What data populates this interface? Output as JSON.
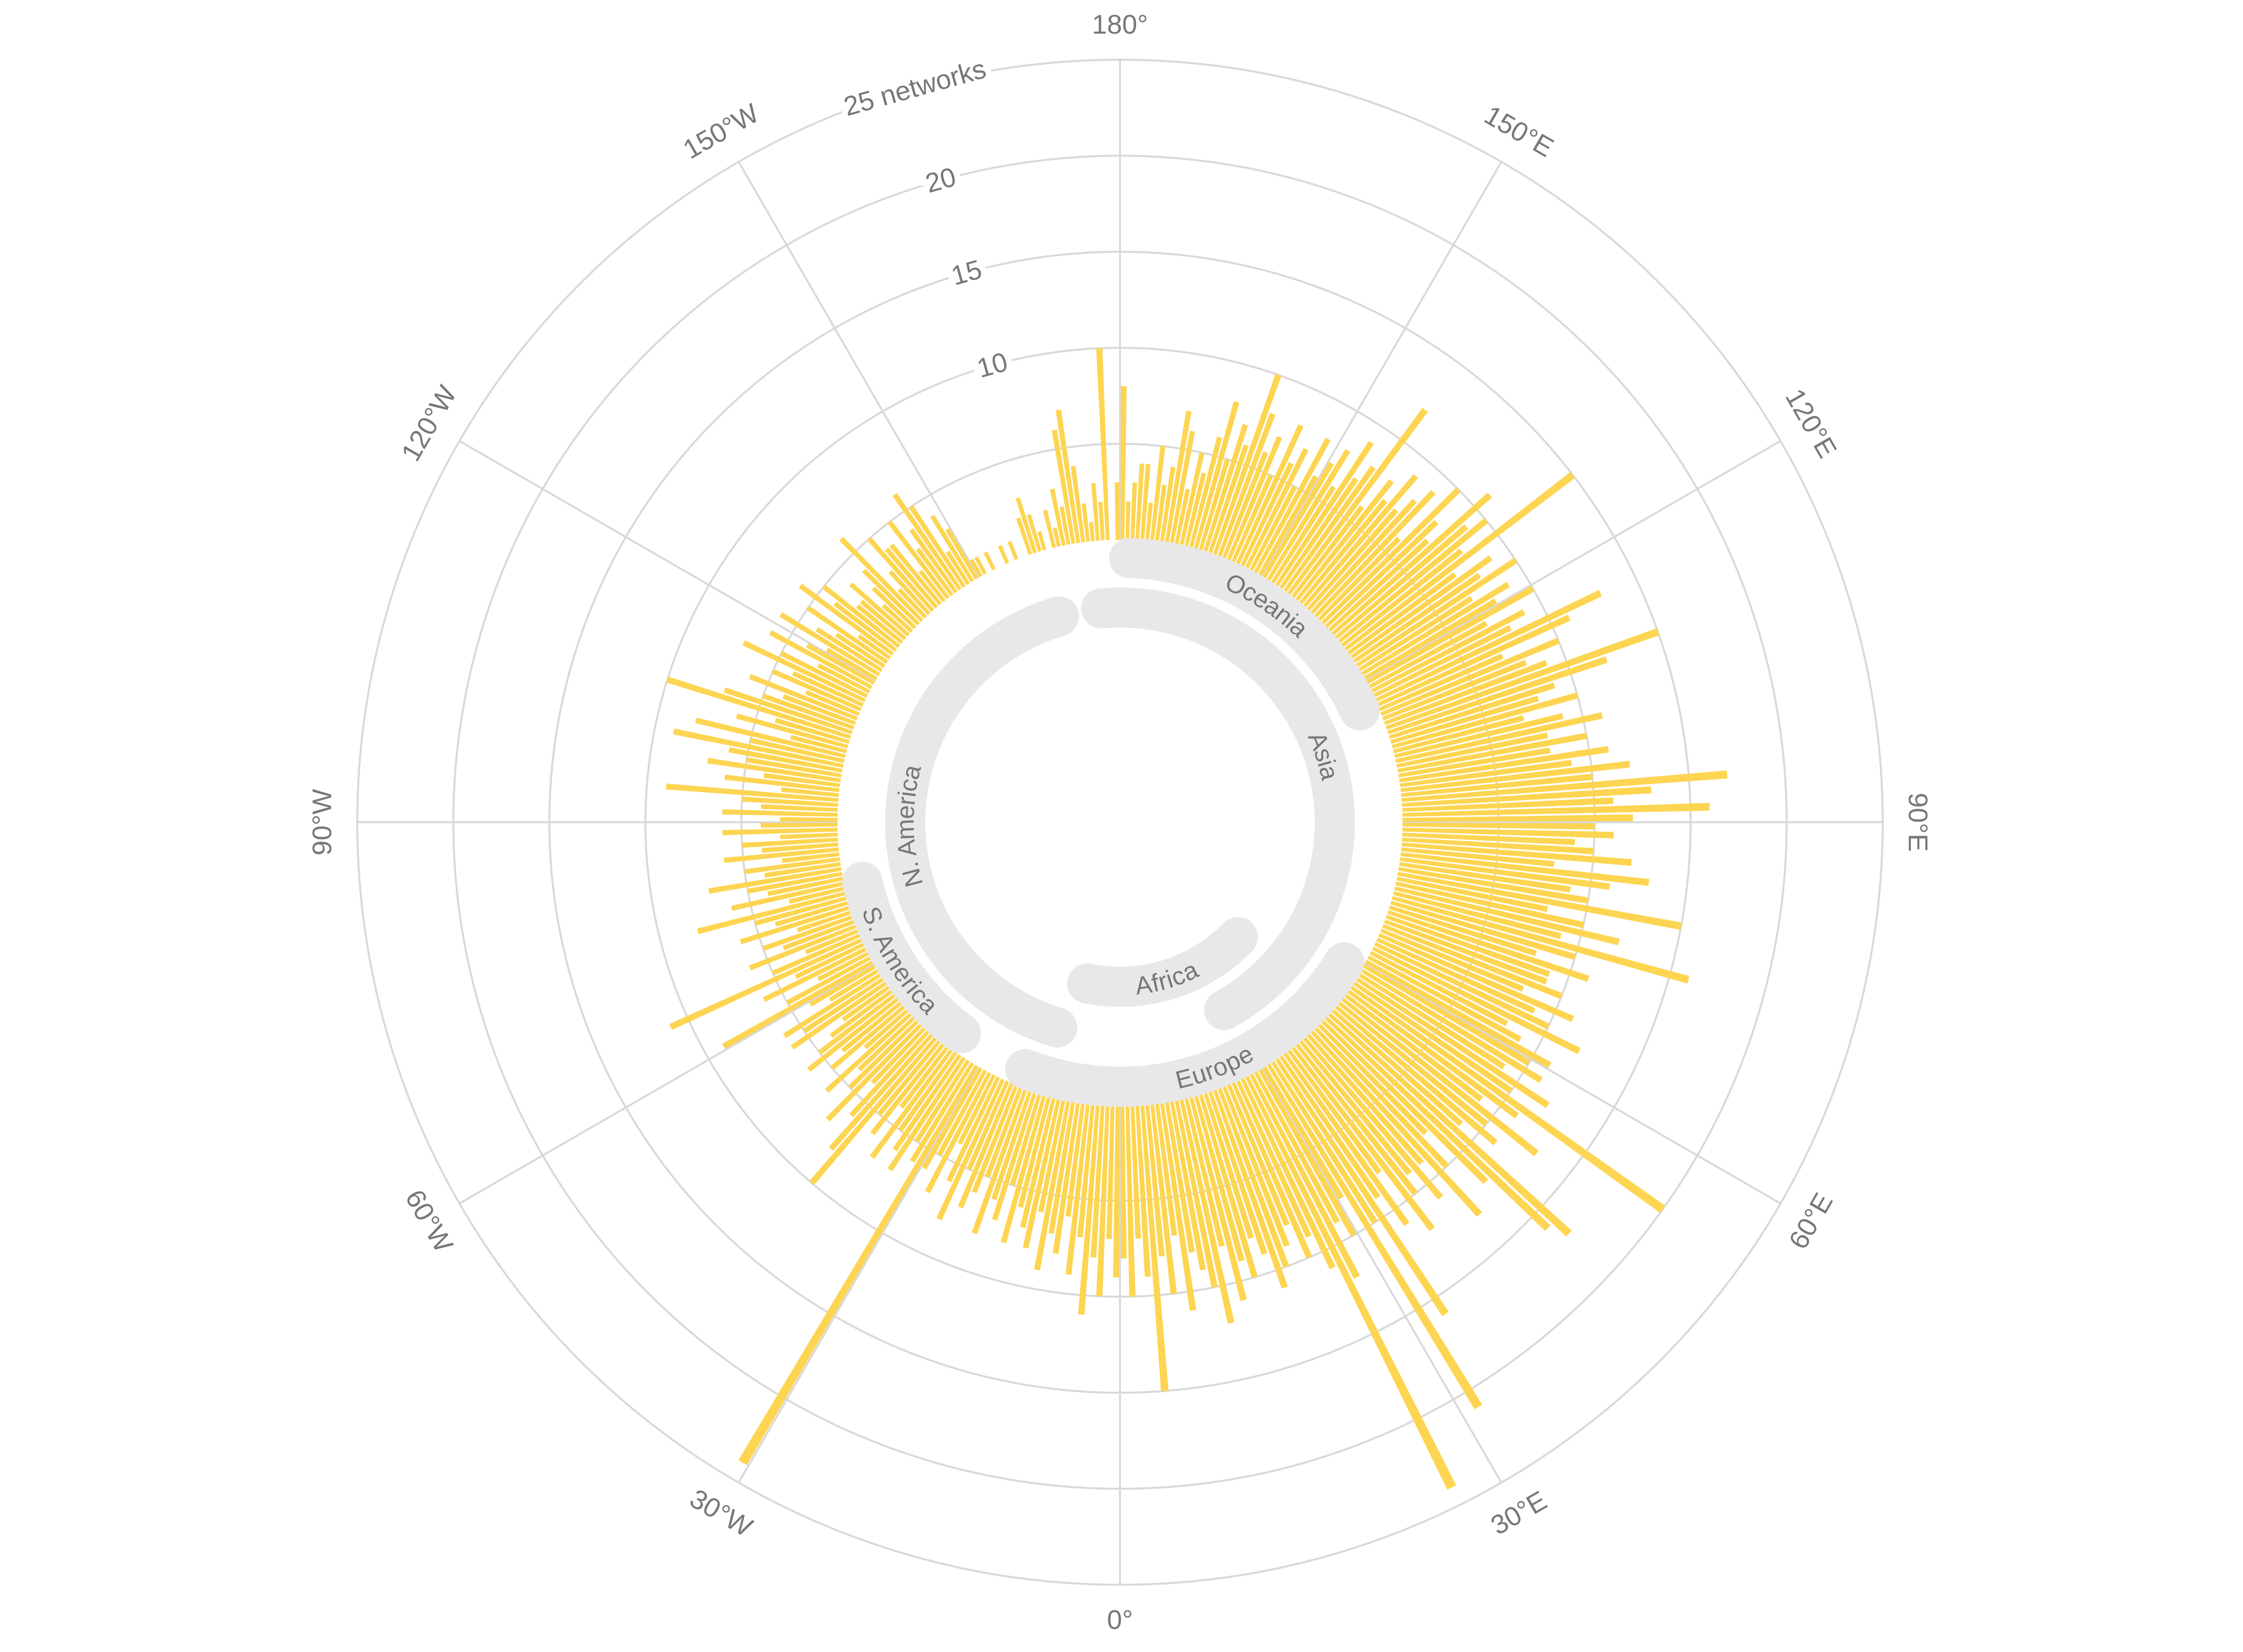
{
  "chart_data": {
    "type": "polar-histogram",
    "bins": [
      -180,
      -179,
      -178,
      -177,
      -176,
      -175,
      -174,
      -173,
      -172,
      -171,
      -170,
      -169,
      -168,
      -167,
      -166,
      -165,
      -164,
      -163,
      -162,
      -161,
      -160,
      -159,
      -158,
      -157,
      -156,
      -155,
      -154,
      -153,
      -152,
      -151,
      -150,
      -149,
      -148,
      -147,
      -146,
      -145,
      -144,
      -143,
      -142,
      -141,
      -140,
      -139,
      -138,
      -137,
      -136,
      -135,
      -134,
      -133,
      -132,
      -131,
      -130,
      -129,
      -128,
      -127,
      -126,
      -125,
      -124,
      -123,
      -122,
      -121,
      -120,
      -119,
      -118,
      -117,
      -116,
      -115,
      -114,
      -113,
      -112,
      -111,
      -110,
      -109,
      -108,
      -107,
      -106,
      -105,
      -104,
      -103,
      -102,
      -101,
      -100,
      -99,
      -98,
      -97,
      -96,
      -95,
      -94,
      -93,
      -92,
      -91,
      -90,
      -89,
      -88,
      -87,
      -86,
      -85,
      -84,
      -83,
      -82,
      -81,
      -80,
      -79,
      -78,
      -77,
      -76,
      -75,
      -74,
      -73,
      -72,
      -71,
      -70,
      -69,
      -68,
      -67,
      -66,
      -65,
      -64,
      -63,
      -62,
      -61,
      -60,
      -59,
      -58,
      -57,
      -56,
      -55,
      -54,
      -53,
      -52,
      -51,
      -50,
      -49,
      -48,
      -47,
      -46,
      -45,
      -44,
      -43,
      -42,
      -41,
      -40,
      -39,
      -38,
      -37,
      -36,
      -35,
      -34,
      -33,
      -32,
      -31,
      -30,
      -29,
      -28,
      -27,
      -26,
      -25,
      -24,
      -23,
      -22,
      -21,
      -20,
      -19,
      -18,
      -17,
      -16,
      -15,
      -14,
      -13,
      -12,
      -11,
      -10,
      -9,
      -8,
      -7,
      -6,
      -5,
      -4,
      -3,
      -2,
      -1,
      0,
      1,
      2,
      3,
      4,
      5,
      6,
      7,
      8,
      9,
      10,
      11,
      12,
      13,
      14,
      15,
      16,
      17,
      18,
      19,
      20,
      21,
      22,
      23,
      24,
      25,
      26,
      27,
      28,
      29,
      30,
      31,
      32,
      33,
      34,
      35,
      36,
      37,
      38,
      39,
      40,
      41,
      42,
      43,
      44,
      45,
      46,
      47,
      48,
      49,
      50,
      51,
      52,
      53,
      54,
      55,
      56,
      57,
      58,
      59,
      60,
      61,
      62,
      63,
      64,
      65,
      66,
      67,
      68,
      69,
      70,
      71,
      72,
      73,
      74,
      75,
      76,
      77,
      78,
      79,
      80,
      81,
      82,
      83,
      84,
      85,
      86,
      87,
      88,
      89,
      90,
      91,
      92,
      93,
      94,
      95,
      96,
      97,
      98,
      99,
      100,
      101,
      102,
      103,
      104,
      105,
      106,
      107,
      108,
      109,
      110,
      111,
      112,
      113,
      114,
      115,
      116,
      117,
      118,
      119,
      120,
      121,
      122,
      123,
      124,
      125,
      126,
      127,
      128,
      129,
      130,
      131,
      132,
      133,
      134,
      135,
      136,
      137,
      138,
      139,
      140,
      141,
      142,
      143,
      144,
      145,
      146,
      147,
      148,
      149,
      150,
      151,
      152,
      153,
      154,
      155,
      156,
      157,
      158,
      159,
      160,
      161,
      162,
      163,
      164,
      165,
      166,
      167,
      168,
      169,
      170,
      171,
      172,
      173,
      174,
      175,
      176,
      177,
      178,
      179,
      180
    ],
    "values": [
      3,
      0,
      10,
      2,
      3,
      1,
      2,
      4,
      7,
      6,
      2,
      3,
      1,
      2,
      0,
      1,
      2,
      3,
      2,
      0,
      0,
      1,
      0,
      1,
      0,
      0,
      1,
      0,
      1,
      1,
      3,
      4,
      2,
      5,
      6,
      4,
      3,
      5,
      2,
      4,
      4,
      5,
      3,
      2,
      6,
      4,
      3,
      2,
      4,
      3,
      3,
      5,
      4,
      6,
      2,
      5,
      3,
      4,
      6,
      3,
      4,
      6,
      3,
      5,
      7,
      4,
      5,
      3,
      6,
      4,
      5,
      7,
      10,
      4,
      6,
      3,
      8,
      5,
      9,
      6,
      5,
      7,
      4,
      6,
      3,
      9,
      5,
      4,
      6,
      3,
      4,
      6,
      3,
      5,
      4,
      6,
      3,
      5,
      4,
      7,
      5,
      4,
      6,
      3,
      8,
      5,
      4,
      6,
      3,
      5,
      4,
      6,
      3,
      5,
      11,
      4,
      6,
      3,
      5,
      9,
      4,
      3,
      6,
      5,
      6,
      3,
      4,
      5,
      6,
      4,
      5,
      3,
      6,
      4,
      5,
      7,
      4,
      6,
      8,
      10,
      5,
      6,
      4,
      7,
      5,
      6,
      7,
      5,
      6,
      24,
      6,
      5,
      7,
      4,
      6,
      8,
      5,
      7,
      6,
      5,
      8,
      6,
      7,
      5,
      8,
      6,
      7,
      8,
      6,
      9,
      7,
      8,
      6,
      9,
      7,
      11,
      8,
      10,
      7,
      9,
      8,
      10,
      7,
      9,
      15,
      8,
      10,
      7,
      11,
      8,
      9,
      10,
      12,
      8,
      11,
      9,
      10,
      8,
      9,
      11,
      10,
      9,
      8,
      10,
      9,
      11,
      24,
      12,
      9,
      10,
      8,
      21,
      10,
      16,
      9,
      11,
      8,
      12,
      10,
      9,
      11,
      9,
      13,
      10,
      8,
      12,
      16,
      17,
      9,
      11,
      10,
      13,
      9,
      11,
      20,
      10,
      12,
      9,
      11,
      10,
      11,
      9,
      8,
      12,
      10,
      9,
      11,
      8,
      10,
      9,
      9,
      11,
      8,
      10,
      16,
      9,
      12,
      10,
      8,
      15,
      10,
      9,
      11,
      13,
      8,
      12,
      10,
      9,
      11,
      10,
      12,
      16,
      11,
      13,
      17,
      10,
      12,
      9,
      11,
      8,
      10,
      8,
      11,
      9,
      7,
      10,
      8,
      9,
      12,
      15,
      9,
      8,
      10,
      7,
      11,
      13,
      8,
      9,
      7,
      10,
      8,
      9,
      7,
      10,
      8,
      9,
      7,
      15,
      8,
      10,
      9,
      11,
      7,
      8,
      10,
      6,
      9,
      8,
      7,
      9,
      7,
      8,
      6,
      12,
      8,
      7,
      9,
      6,
      8,
      7,
      6,
      8,
      5,
      7,
      6,
      8,
      5,
      7,
      6,
      8,
      10,
      6,
      7,
      5,
      8,
      6,
      4,
      5,
      3,
      6,
      7,
      4,
      3,
      5,
      2,
      4,
      4,
      3,
      2,
      8
    ],
    "color": "#fdd552",
    "xticks": [
      {
        "value": 0,
        "label": "0°"
      },
      {
        "value": 30,
        "label": "30°E"
      },
      {
        "value": 60,
        "label": "60°E"
      },
      {
        "value": 90,
        "label": "90°E"
      },
      {
        "value": 120,
        "label": "120°E"
      },
      {
        "value": 150,
        "label": "150°E"
      },
      {
        "value": 180,
        "label": "180°"
      },
      {
        "value": -150,
        "label": "150°W"
      },
      {
        "value": -120,
        "label": "120°W"
      },
      {
        "value": -90,
        "label": "90°W"
      },
      {
        "value": -60,
        "label": "60°W"
      },
      {
        "value": -30,
        "label": "30°W"
      }
    ],
    "ylim": [
      0,
      25
    ],
    "yticks": [
      10,
      15,
      20,
      {
        "value": 25,
        "label": "25 networks"
      }
    ],
    "minor_yticks": [
      5
    ],
    "grid": true,
    "regions": [
      "Oceania",
      "Asia",
      "Africa",
      "Europe",
      "N. America",
      "S. America"
    ]
  }
}
